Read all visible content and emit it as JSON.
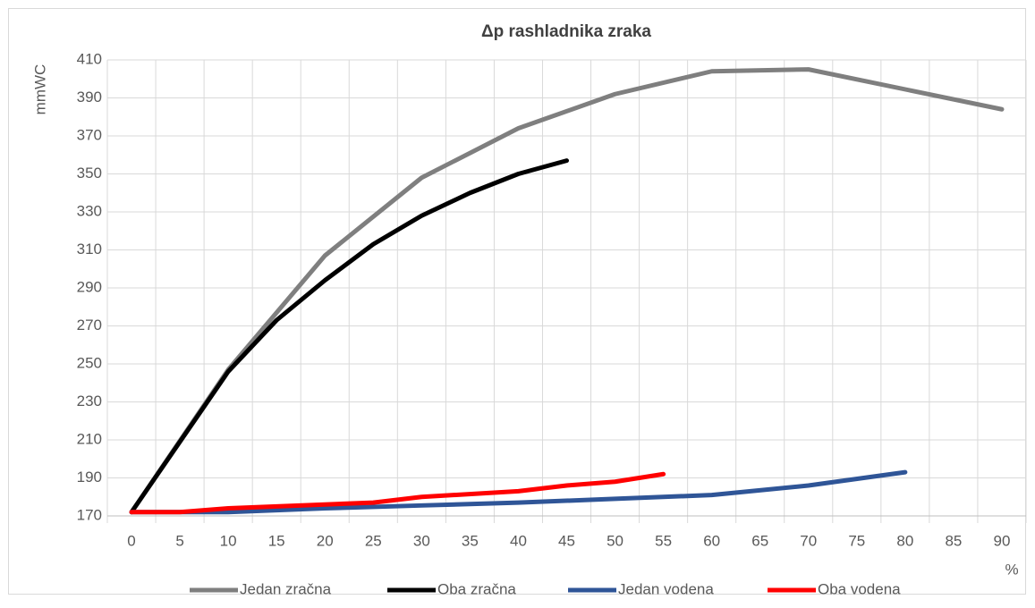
{
  "chart_data": {
    "type": "line",
    "title": "Δp rashladnika zraka",
    "y_label": "mmWC",
    "x_label": "%",
    "xlim": [
      -2.5,
      92.5
    ],
    "xticks": [
      0,
      5,
      10,
      15,
      20,
      25,
      30,
      35,
      40,
      45,
      50,
      55,
      60,
      65,
      70,
      75,
      80,
      85,
      90
    ],
    "ylim": [
      170,
      410
    ],
    "yticks": [
      170,
      190,
      210,
      230,
      250,
      270,
      290,
      310,
      330,
      350,
      370,
      390,
      410
    ],
    "grid": true,
    "legend": "bottom",
    "series": [
      {
        "name": "Jedan zračna",
        "color": "#7f7f7f",
        "x": [
          0,
          10,
          20,
          30,
          40,
          50,
          60,
          70,
          90
        ],
        "values": [
          172,
          247,
          307,
          348,
          374,
          392,
          404,
          405,
          384
        ]
      },
      {
        "name": "Oba zračna",
        "color": "#000000",
        "x": [
          0,
          10,
          15,
          20,
          25,
          30,
          35,
          40,
          45
        ],
        "values": [
          172,
          246,
          273,
          294,
          313,
          328,
          340,
          350,
          357
        ]
      },
      {
        "name": "Jedan vodena",
        "color": "#2f5597",
        "x": [
          0,
          10,
          20,
          30,
          40,
          50,
          60,
          70,
          80
        ],
        "values": [
          172,
          172,
          174,
          175.5,
          177,
          179,
          181,
          186,
          193
        ]
      },
      {
        "name": "Oba vodena",
        "color": "#ff0000",
        "x": [
          0,
          5,
          10,
          20,
          25,
          30,
          40,
          45,
          50,
          55
        ],
        "values": [
          172,
          172,
          174,
          176,
          177,
          180,
          183,
          186,
          188,
          192
        ]
      }
    ]
  }
}
